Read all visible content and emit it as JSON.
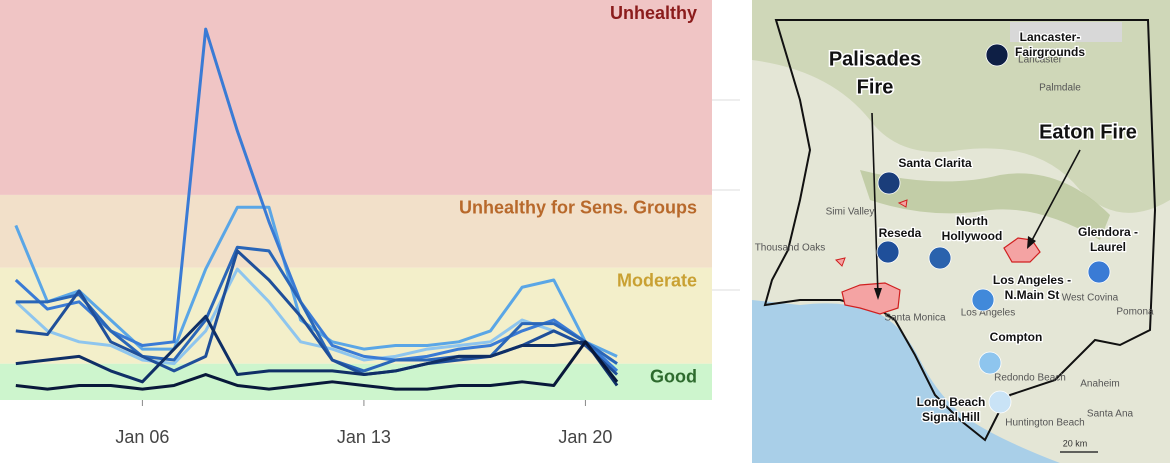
{
  "chart_data": {
    "type": "line",
    "bands": [
      {
        "label": "Good",
        "from": 0,
        "to": 9,
        "color": "#cdf5cd",
        "label_color": "#2e6b2e"
      },
      {
        "label": "Moderate",
        "from": 9,
        "to": 35.4,
        "color": "#f3efca",
        "label_color": "#c9a133"
      },
      {
        "label": "Unhealthy for Sens. Groups",
        "from": 35.4,
        "to": 55.4,
        "color": "#f2e0c9",
        "label_color": "#b8692b"
      },
      {
        "label": "Unhealthy",
        "from": 55.4,
        "to": 109,
        "color": "#f0c5c5",
        "label_color": "#8b1c1c"
      }
    ],
    "x": [
      2,
      3,
      4,
      5,
      6,
      7,
      8,
      9,
      10,
      11,
      12,
      13,
      14,
      15,
      16,
      17,
      18,
      19,
      20,
      21
    ],
    "xlim": [
      1.5,
      24
    ],
    "xticks": [
      {
        "value": 6,
        "label": "Jan 06"
      },
      {
        "value": 13,
        "label": "Jan 13"
      },
      {
        "value": 20,
        "label": "Jan 20"
      }
    ],
    "ylim": [
      -1,
      109
    ],
    "series": [
      {
        "color": "#8ec5ee",
        "values": [
          26,
          18,
          15,
          14,
          10,
          9,
          18,
          35,
          26,
          15,
          13,
          10,
          11,
          13,
          14,
          15,
          21,
          18,
          14,
          9
        ]
      },
      {
        "color": "#5aa6e6",
        "values": [
          47,
          26,
          29,
          21,
          13,
          13,
          35,
          52,
          52,
          21,
          15,
          13,
          14,
          14,
          15,
          18,
          30,
          32,
          15,
          11
        ]
      },
      {
        "color": "#3a7bd5",
        "values": [
          32,
          24,
          26,
          18,
          14,
          15,
          101,
          73,
          48,
          26,
          14,
          11,
          10,
          11,
          13,
          14,
          18,
          21,
          15,
          7
        ]
      },
      {
        "color": "#2a66b8",
        "values": [
          26,
          26,
          28,
          18,
          11,
          10,
          21,
          41,
          40,
          26,
          10,
          7,
          10,
          10,
          11,
          11,
          20,
          20,
          15,
          9
        ]
      },
      {
        "color": "#1f4f9a",
        "values": [
          18,
          17,
          29,
          15,
          11,
          7,
          11,
          40,
          32,
          22,
          10,
          6,
          7,
          9,
          10,
          11,
          14,
          18,
          14,
          6
        ]
      },
      {
        "color": "#0f2f66",
        "values": [
          9,
          10,
          11,
          7,
          4,
          13,
          22,
          6,
          7,
          7,
          7,
          6,
          7,
          9,
          11,
          11,
          14,
          14,
          15,
          3
        ]
      },
      {
        "color": "#08183a",
        "values": [
          3,
          2,
          3,
          3,
          2,
          3,
          6,
          3,
          2,
          3,
          4,
          3,
          2,
          2,
          3,
          3,
          4,
          3,
          15,
          4
        ]
      }
    ]
  },
  "map": {
    "fires": [
      {
        "label": [
          "Palisades",
          "Fire"
        ]
      },
      {
        "label": [
          "Eaton Fire"
        ]
      }
    ],
    "stations": [
      {
        "label": [
          "Lancaster-",
          "Fairgrounds"
        ],
        "color": "#0e1f45"
      },
      {
        "label": [
          "Santa Clarita"
        ],
        "color": "#1a3d7a"
      },
      {
        "label": [
          "Reseda"
        ],
        "color": "#1f4f9a"
      },
      {
        "label": [
          "North",
          "Hollywood"
        ],
        "color": "#2a62ad"
      },
      {
        "label": [
          "Glendora -",
          "Laurel"
        ],
        "color": "#3a7bd5"
      },
      {
        "label": [
          "Los Angeles -",
          "N.Main St"
        ],
        "color": "#4189da"
      },
      {
        "label": [
          "Compton"
        ],
        "color": "#8ec5ee"
      },
      {
        "label": [
          "Long Beach",
          "Signal Hill"
        ],
        "color": "#c9e3f6"
      }
    ],
    "places": [
      "Lancaster",
      "Palmdale",
      "Simi Valley",
      "Thousand Oaks",
      "Santa Monica",
      "Los Angeles",
      "Redondo Beach",
      "West Covina",
      "Pomona",
      "Anaheim",
      "Santa Ana",
      "Huntington Beach"
    ],
    "scale": "20 km"
  }
}
